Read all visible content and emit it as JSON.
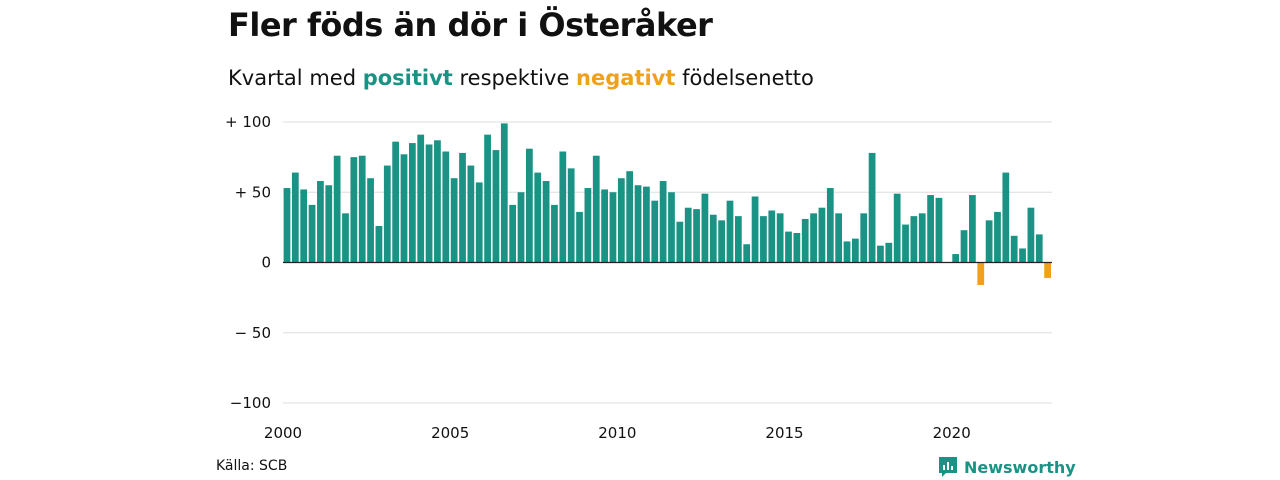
{
  "title": "Fler föds än dör i Österåker",
  "subtitle": {
    "prefix": "Kvartal med ",
    "positive_word": "positivt",
    "middle": " respektive ",
    "negative_word": "negativt",
    "suffix": " födelsenetto"
  },
  "source": "Källa: SCB",
  "brand": {
    "name": "Newsworthy",
    "icon": "newsworthy-logo-icon"
  },
  "colors": {
    "positive": "#1a9385",
    "negative": "#f0a11c",
    "grid": "#dddddd",
    "zero": "#222222"
  },
  "chart_data": {
    "type": "bar",
    "x_start": "2000 Q1",
    "x_step": "quarter",
    "values": [
      53,
      64,
      52,
      41,
      58,
      55,
      76,
      35,
      75,
      76,
      60,
      26,
      69,
      86,
      77,
      85,
      91,
      84,
      87,
      79,
      60,
      78,
      69,
      57,
      91,
      80,
      99,
      41,
      50,
      81,
      64,
      58,
      41,
      79,
      67,
      36,
      53,
      76,
      52,
      50,
      60,
      65,
      55,
      54,
      44,
      58,
      50,
      29,
      39,
      38,
      49,
      34,
      30,
      44,
      33,
      13,
      47,
      33,
      37,
      35,
      22,
      21,
      31,
      35,
      39,
      53,
      35,
      15,
      17,
      35,
      78,
      12,
      14,
      49,
      27,
      33,
      35,
      48,
      46,
      0,
      6,
      23,
      48,
      -16,
      30,
      36,
      64,
      19,
      10,
      39,
      20,
      -11
    ],
    "ylim": [
      -100,
      100
    ],
    "yticks": [
      {
        "value": 100,
        "label": "+ 100"
      },
      {
        "value": 50,
        "label": "+  50"
      },
      {
        "value": 0,
        "label": "0"
      },
      {
        "value": -50,
        "label": "− 50"
      },
      {
        "value": -100,
        "label": "−100"
      }
    ],
    "xticks": [
      {
        "year": 2000,
        "label": "2000"
      },
      {
        "year": 2005,
        "label": "2005"
      },
      {
        "year": 2010,
        "label": "2010"
      },
      {
        "year": 2015,
        "label": "2015"
      },
      {
        "year": 2020,
        "label": "2020"
      }
    ],
    "xlabel": "",
    "ylabel": "",
    "grid": true,
    "legend": "none"
  }
}
